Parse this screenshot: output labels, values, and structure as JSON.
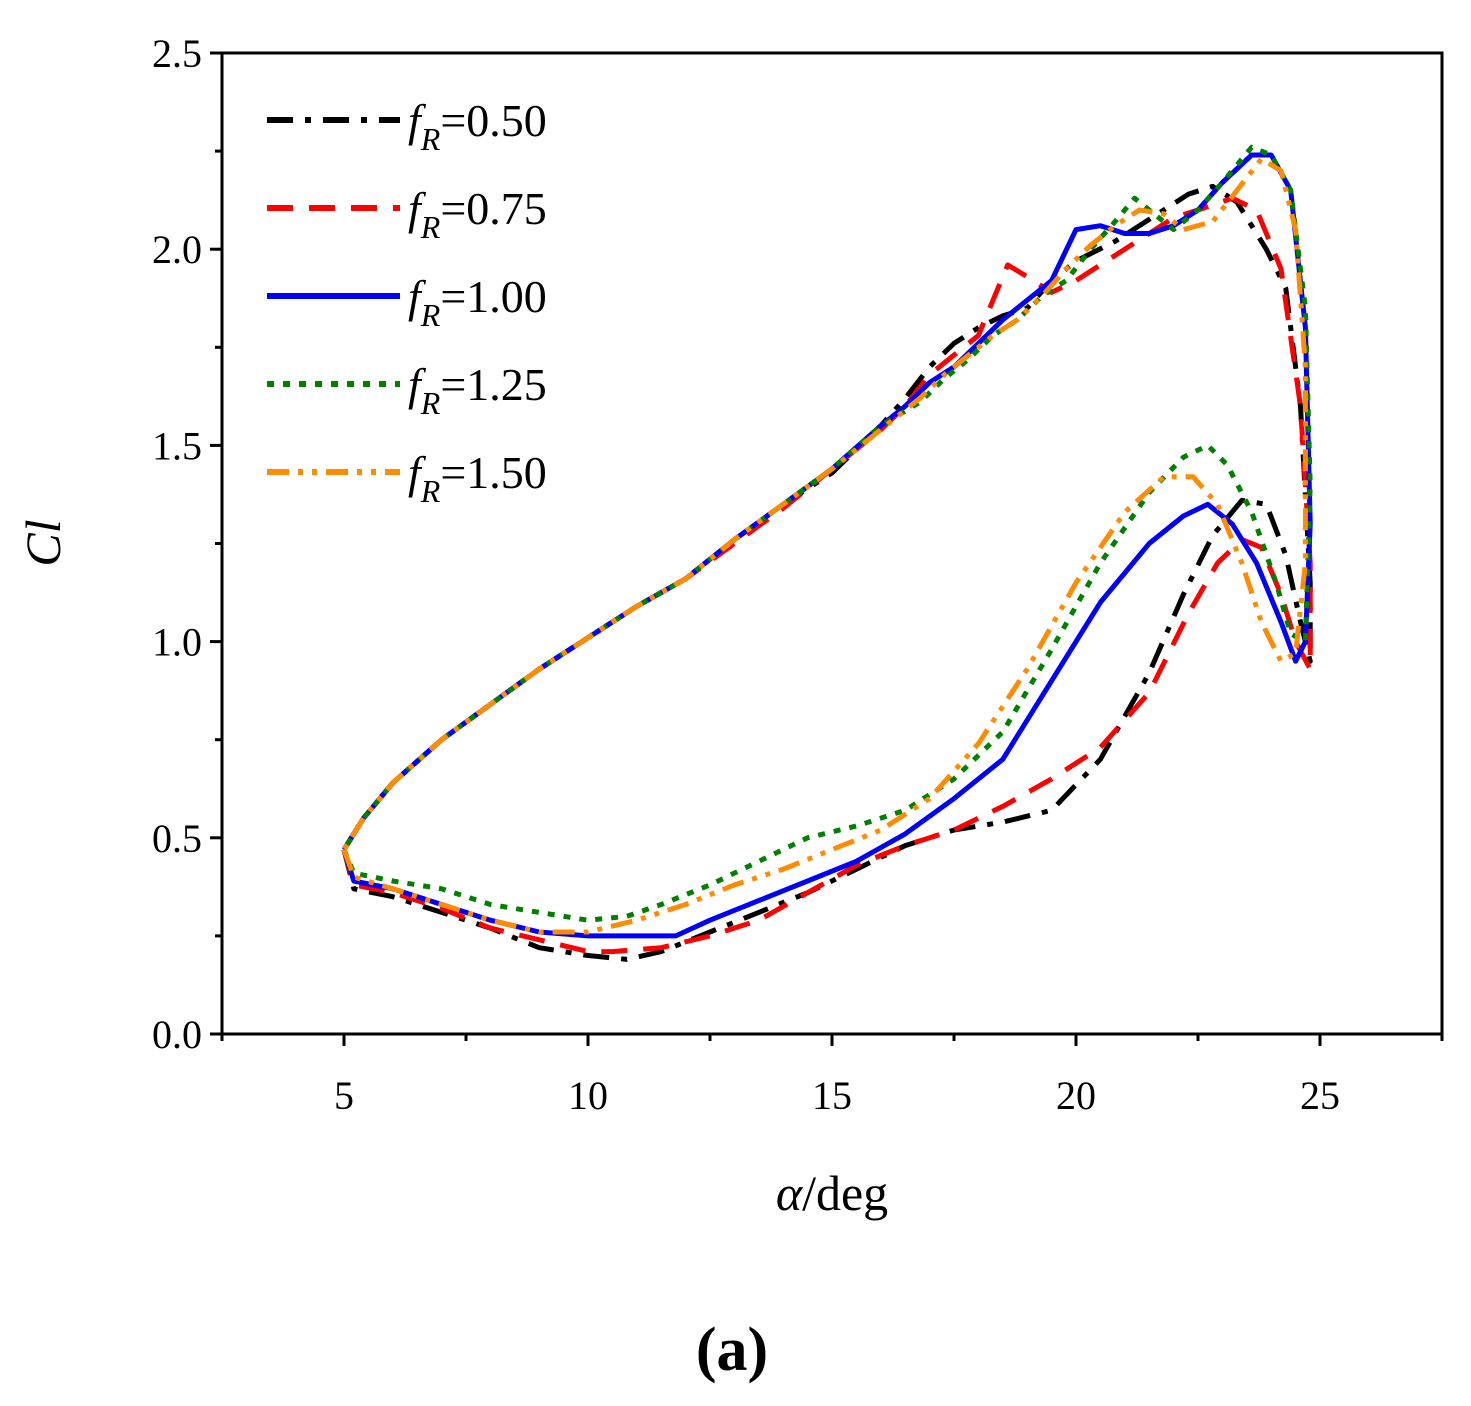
{
  "chart_data": {
    "type": "line",
    "title": "",
    "caption": "(a)",
    "xlabel": "α/deg",
    "xlabel_parts": {
      "symbol": "α",
      "unit": "/deg"
    },
    "ylabel": "Cl",
    "xlim": [
      2.5,
      27.5
    ],
    "ylim": [
      0,
      2.5
    ],
    "x_ticks": [
      5,
      10,
      15,
      20,
      25
    ],
    "x_tick_labels": [
      "5",
      "10",
      "15",
      "20",
      "25"
    ],
    "y_ticks": [
      0,
      0.5,
      1,
      1.5,
      2,
      2.5
    ],
    "y_tick_labels": [
      "0.0",
      "0.5",
      "1.0",
      "1.5",
      "2.0",
      "2.5"
    ],
    "grid": false,
    "legend_position": "top-left",
    "series": [
      {
        "name": "fR=0.50",
        "label_main": "f",
        "label_sub": "R",
        "label_value": "=0.50",
        "color": "#000000",
        "dash": "dash-dot",
        "points": [
          [
            5.0,
            0.47
          ],
          [
            5.2,
            0.37
          ],
          [
            6.0,
            0.35
          ],
          [
            7.0,
            0.31
          ],
          [
            8.0,
            0.27
          ],
          [
            9.0,
            0.22
          ],
          [
            10.0,
            0.2
          ],
          [
            10.8,
            0.19
          ],
          [
            11.5,
            0.21
          ],
          [
            12.5,
            0.26
          ],
          [
            13.5,
            0.31
          ],
          [
            14.5,
            0.36
          ],
          [
            15.5,
            0.42
          ],
          [
            16.5,
            0.48
          ],
          [
            17.5,
            0.52
          ],
          [
            18.5,
            0.54
          ],
          [
            19.5,
            0.57
          ],
          [
            20.5,
            0.7
          ],
          [
            21.5,
            0.92
          ],
          [
            22.2,
            1.12
          ],
          [
            22.8,
            1.27
          ],
          [
            23.4,
            1.36
          ],
          [
            23.9,
            1.35
          ],
          [
            24.3,
            1.22
          ],
          [
            24.6,
            1.05
          ],
          [
            24.8,
            0.95
          ],
          [
            24.8,
            1.15
          ],
          [
            24.6,
            1.6
          ],
          [
            24.3,
            1.9
          ],
          [
            23.9,
            2.0
          ],
          [
            23.3,
            2.12
          ],
          [
            22.8,
            2.16
          ],
          [
            22.3,
            2.14
          ],
          [
            21.8,
            2.1
          ],
          [
            21.3,
            2.06
          ],
          [
            20.8,
            2.02
          ],
          [
            20.0,
            1.97
          ],
          [
            19.5,
            1.92
          ],
          [
            19.0,
            1.85
          ],
          [
            18.5,
            1.83
          ],
          [
            18.0,
            1.8
          ],
          [
            17.5,
            1.76
          ],
          [
            17.0,
            1.7
          ],
          [
            16.5,
            1.62
          ],
          [
            16.0,
            1.55
          ],
          [
            15.0,
            1.43
          ],
          [
            14.0,
            1.35
          ],
          [
            13.0,
            1.26
          ],
          [
            12.0,
            1.16
          ],
          [
            11.0,
            1.09
          ],
          [
            10.0,
            1.01
          ],
          [
            9.0,
            0.93
          ],
          [
            8.0,
            0.84
          ],
          [
            7.0,
            0.75
          ],
          [
            6.0,
            0.64
          ],
          [
            5.4,
            0.55
          ],
          [
            5.0,
            0.47
          ]
        ]
      },
      {
        "name": "fR=0.75",
        "label_main": "f",
        "label_sub": "R",
        "label_value": "=0.75",
        "color": "#ff0000",
        "dash": "dash",
        "points": [
          [
            5.0,
            0.47
          ],
          [
            5.2,
            0.38
          ],
          [
            6.0,
            0.36
          ],
          [
            7.0,
            0.32
          ],
          [
            8.0,
            0.27
          ],
          [
            9.0,
            0.24
          ],
          [
            10.0,
            0.21
          ],
          [
            10.5,
            0.21
          ],
          [
            11.5,
            0.22
          ],
          [
            12.5,
            0.25
          ],
          [
            13.5,
            0.29
          ],
          [
            14.5,
            0.36
          ],
          [
            15.5,
            0.43
          ],
          [
            16.5,
            0.48
          ],
          [
            17.5,
            0.52
          ],
          [
            18.5,
            0.58
          ],
          [
            19.5,
            0.65
          ],
          [
            20.5,
            0.73
          ],
          [
            21.5,
            0.87
          ],
          [
            22.3,
            1.07
          ],
          [
            22.9,
            1.2
          ],
          [
            23.4,
            1.26
          ],
          [
            23.8,
            1.24
          ],
          [
            24.2,
            1.12
          ],
          [
            24.5,
            1.0
          ],
          [
            24.8,
            0.93
          ],
          [
            24.8,
            1.2
          ],
          [
            24.6,
            1.6
          ],
          [
            24.2,
            1.95
          ],
          [
            23.7,
            2.1
          ],
          [
            23.2,
            2.13
          ],
          [
            22.5,
            2.1
          ],
          [
            22.0,
            2.08
          ],
          [
            21.5,
            2.04
          ],
          [
            21.0,
            2.0
          ],
          [
            20.5,
            1.96
          ],
          [
            20.0,
            1.92
          ],
          [
            19.5,
            1.89
          ],
          [
            19.0,
            1.93
          ],
          [
            18.6,
            1.96
          ],
          [
            18.3,
            1.87
          ],
          [
            18.0,
            1.78
          ],
          [
            17.5,
            1.73
          ],
          [
            17.0,
            1.68
          ],
          [
            16.5,
            1.6
          ],
          [
            16.0,
            1.54
          ],
          [
            15.0,
            1.44
          ],
          [
            14.0,
            1.34
          ],
          [
            13.0,
            1.25
          ],
          [
            12.0,
            1.16
          ],
          [
            11.0,
            1.09
          ],
          [
            10.0,
            1.01
          ],
          [
            9.0,
            0.93
          ],
          [
            8.0,
            0.84
          ],
          [
            7.0,
            0.75
          ],
          [
            6.0,
            0.64
          ],
          [
            5.4,
            0.55
          ],
          [
            5.0,
            0.47
          ]
        ]
      },
      {
        "name": "fR=1.00",
        "label_main": "f",
        "label_sub": "R",
        "label_value": "=1.00",
        "color": "#0000ff",
        "dash": "solid",
        "points": [
          [
            5.0,
            0.47
          ],
          [
            5.2,
            0.39
          ],
          [
            6.0,
            0.37
          ],
          [
            7.0,
            0.33
          ],
          [
            8.0,
            0.29
          ],
          [
            9.0,
            0.26
          ],
          [
            10.0,
            0.25
          ],
          [
            11.0,
            0.25
          ],
          [
            11.8,
            0.25
          ],
          [
            12.5,
            0.29
          ],
          [
            13.5,
            0.34
          ],
          [
            14.5,
            0.39
          ],
          [
            15.5,
            0.44
          ],
          [
            16.5,
            0.51
          ],
          [
            17.5,
            0.6
          ],
          [
            18.5,
            0.7
          ],
          [
            19.5,
            0.9
          ],
          [
            20.5,
            1.1
          ],
          [
            21.5,
            1.25
          ],
          [
            22.2,
            1.32
          ],
          [
            22.7,
            1.35
          ],
          [
            23.2,
            1.3
          ],
          [
            23.7,
            1.2
          ],
          [
            24.2,
            1.05
          ],
          [
            24.5,
            0.95
          ],
          [
            24.7,
            1.0
          ],
          [
            24.8,
            1.3
          ],
          [
            24.7,
            1.8
          ],
          [
            24.4,
            2.15
          ],
          [
            24.0,
            2.24
          ],
          [
            23.6,
            2.24
          ],
          [
            23.0,
            2.17
          ],
          [
            22.5,
            2.1
          ],
          [
            22.0,
            2.06
          ],
          [
            21.5,
            2.04
          ],
          [
            21.0,
            2.04
          ],
          [
            20.5,
            2.06
          ],
          [
            20.0,
            2.05
          ],
          [
            19.5,
            1.92
          ],
          [
            19.0,
            1.87
          ],
          [
            18.5,
            1.82
          ],
          [
            18.0,
            1.76
          ],
          [
            17.5,
            1.7
          ],
          [
            17.0,
            1.66
          ],
          [
            16.5,
            1.6
          ],
          [
            16.0,
            1.55
          ],
          [
            15.0,
            1.44
          ],
          [
            14.0,
            1.35
          ],
          [
            13.0,
            1.26
          ],
          [
            12.0,
            1.16
          ],
          [
            11.0,
            1.09
          ],
          [
            10.0,
            1.01
          ],
          [
            9.0,
            0.93
          ],
          [
            8.0,
            0.84
          ],
          [
            7.0,
            0.75
          ],
          [
            6.0,
            0.64
          ],
          [
            5.4,
            0.55
          ],
          [
            5.0,
            0.47
          ]
        ]
      },
      {
        "name": "fR=1.25",
        "label_main": "f",
        "label_sub": "R",
        "label_value": "=1.25",
        "color": "#008000",
        "dash": "dot",
        "points": [
          [
            5.0,
            0.47
          ],
          [
            5.2,
            0.41
          ],
          [
            6.0,
            0.39
          ],
          [
            7.0,
            0.37
          ],
          [
            8.0,
            0.33
          ],
          [
            9.0,
            0.31
          ],
          [
            10.0,
            0.29
          ],
          [
            10.8,
            0.3
          ],
          [
            11.5,
            0.33
          ],
          [
            12.5,
            0.38
          ],
          [
            13.5,
            0.44
          ],
          [
            14.5,
            0.5
          ],
          [
            15.5,
            0.53
          ],
          [
            16.5,
            0.57
          ],
          [
            17.5,
            0.65
          ],
          [
            18.5,
            0.77
          ],
          [
            19.5,
            0.98
          ],
          [
            20.5,
            1.2
          ],
          [
            21.5,
            1.38
          ],
          [
            22.2,
            1.47
          ],
          [
            22.7,
            1.5
          ],
          [
            23.1,
            1.45
          ],
          [
            23.6,
            1.33
          ],
          [
            24.1,
            1.15
          ],
          [
            24.4,
            1.02
          ],
          [
            24.7,
            1.0
          ],
          [
            24.8,
            1.4
          ],
          [
            24.7,
            1.85
          ],
          [
            24.4,
            2.15
          ],
          [
            24.0,
            2.24
          ],
          [
            23.6,
            2.26
          ],
          [
            23.0,
            2.17
          ],
          [
            22.5,
            2.1
          ],
          [
            22.0,
            2.05
          ],
          [
            21.5,
            2.1
          ],
          [
            21.2,
            2.13
          ],
          [
            20.8,
            2.07
          ],
          [
            20.3,
            2.0
          ],
          [
            19.8,
            1.92
          ],
          [
            19.3,
            1.88
          ],
          [
            18.8,
            1.82
          ],
          [
            18.3,
            1.78
          ],
          [
            17.8,
            1.72
          ],
          [
            17.3,
            1.67
          ],
          [
            16.8,
            1.61
          ],
          [
            16.0,
            1.55
          ],
          [
            15.0,
            1.44
          ],
          [
            14.0,
            1.35
          ],
          [
            13.0,
            1.26
          ],
          [
            12.0,
            1.16
          ],
          [
            11.0,
            1.09
          ],
          [
            10.0,
            1.01
          ],
          [
            9.0,
            0.93
          ],
          [
            8.0,
            0.84
          ],
          [
            7.0,
            0.75
          ],
          [
            6.0,
            0.64
          ],
          [
            5.4,
            0.55
          ],
          [
            5.0,
            0.47
          ]
        ]
      },
      {
        "name": "fR=1.50",
        "label_main": "f",
        "label_sub": "R",
        "label_value": "=1.50",
        "color": "#ff8c00",
        "dash": "dash-dot-dot",
        "points": [
          [
            5.0,
            0.47
          ],
          [
            5.2,
            0.4
          ],
          [
            6.0,
            0.37
          ],
          [
            7.0,
            0.33
          ],
          [
            8.0,
            0.29
          ],
          [
            9.0,
            0.26
          ],
          [
            10.0,
            0.26
          ],
          [
            11.0,
            0.29
          ],
          [
            12.0,
            0.33
          ],
          [
            13.0,
            0.38
          ],
          [
            14.0,
            0.42
          ],
          [
            15.0,
            0.47
          ],
          [
            16.0,
            0.52
          ],
          [
            17.0,
            0.6
          ],
          [
            18.0,
            0.74
          ],
          [
            19.0,
            0.93
          ],
          [
            20.0,
            1.15
          ],
          [
            21.0,
            1.33
          ],
          [
            21.8,
            1.42
          ],
          [
            22.4,
            1.42
          ],
          [
            22.9,
            1.35
          ],
          [
            23.4,
            1.2
          ],
          [
            23.8,
            1.05
          ],
          [
            24.2,
            0.95
          ],
          [
            24.5,
            0.97
          ],
          [
            24.7,
            1.2
          ],
          [
            24.7,
            1.7
          ],
          [
            24.5,
            2.05
          ],
          [
            24.2,
            2.2
          ],
          [
            23.8,
            2.23
          ],
          [
            23.3,
            2.15
          ],
          [
            22.8,
            2.07
          ],
          [
            22.2,
            2.05
          ],
          [
            21.8,
            2.09
          ],
          [
            21.3,
            2.1
          ],
          [
            20.8,
            2.06
          ],
          [
            20.3,
            2.01
          ],
          [
            19.8,
            1.95
          ],
          [
            19.3,
            1.88
          ],
          [
            18.8,
            1.82
          ],
          [
            18.3,
            1.78
          ],
          [
            17.8,
            1.73
          ],
          [
            17.3,
            1.68
          ],
          [
            16.8,
            1.62
          ],
          [
            16.0,
            1.54
          ],
          [
            15.0,
            1.44
          ],
          [
            14.0,
            1.35
          ],
          [
            13.0,
            1.26
          ],
          [
            12.0,
            1.16
          ],
          [
            11.0,
            1.09
          ],
          [
            10.0,
            1.01
          ],
          [
            9.0,
            0.93
          ],
          [
            8.0,
            0.84
          ],
          [
            7.0,
            0.75
          ],
          [
            6.0,
            0.64
          ],
          [
            5.4,
            0.55
          ],
          [
            5.0,
            0.47
          ]
        ]
      }
    ]
  }
}
